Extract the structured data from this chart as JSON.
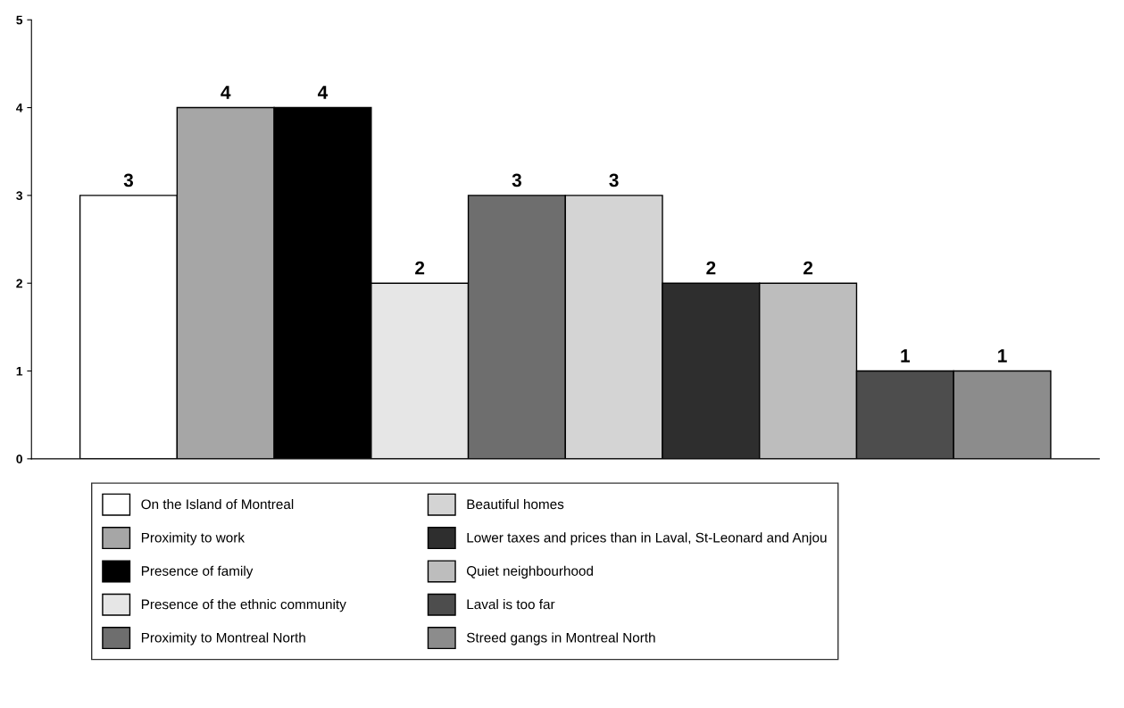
{
  "chart_data": {
    "type": "bar",
    "categories": [
      null,
      null,
      null,
      null,
      null,
      null,
      null,
      null,
      null,
      null
    ],
    "series": [
      {
        "name": "On the Island of Montreal",
        "color": "#ffffff",
        "values": [
          3,
          null,
          null,
          null,
          null,
          null,
          null,
          null,
          null,
          null
        ]
      },
      {
        "name": "Proximity to work",
        "color": "#a6a6a6",
        "values": [
          null,
          4,
          null,
          null,
          null,
          null,
          null,
          null,
          null,
          null
        ]
      },
      {
        "name": "Presence of family",
        "color": "#000000",
        "values": [
          null,
          null,
          4,
          null,
          null,
          null,
          null,
          null,
          null,
          null
        ]
      },
      {
        "name": "Presence of the ethnic community",
        "color": "#e6e6e6",
        "values": [
          null,
          null,
          null,
          2,
          null,
          null,
          null,
          null,
          null,
          null
        ]
      },
      {
        "name": "Proximity to Montreal North",
        "color": "#6e6e6e",
        "values": [
          null,
          null,
          null,
          null,
          3,
          null,
          null,
          null,
          null,
          null
        ]
      },
      {
        "name": "Beautiful homes",
        "color": "#d4d4d4",
        "values": [
          null,
          null,
          null,
          null,
          null,
          3,
          null,
          null,
          null,
          null
        ]
      },
      {
        "name": "Lower taxes and prices than in Laval, St-Leonard and Anjou",
        "color": "#2e2e2e",
        "values": [
          null,
          null,
          null,
          null,
          null,
          null,
          2,
          null,
          null,
          null
        ]
      },
      {
        "name": "Quiet neighbourhood",
        "color": "#bdbdbd",
        "values": [
          null,
          null,
          null,
          null,
          null,
          null,
          null,
          2,
          null,
          null
        ]
      },
      {
        "name": "Laval is too far",
        "color": "#4d4d4d",
        "values": [
          null,
          null,
          null,
          null,
          null,
          null,
          null,
          null,
          1,
          null
        ]
      },
      {
        "name": "Streed gangs in Montreal North",
        "color": "#8c8c8c",
        "values": [
          null,
          null,
          null,
          null,
          null,
          null,
          null,
          null,
          null,
          1
        ]
      }
    ],
    "ylim": [
      0,
      5
    ],
    "yticks": [
      0,
      1,
      2,
      3,
      4,
      5
    ],
    "data_labels": true,
    "legend": "bottom",
    "grid": false,
    "tick_labels": "y"
  }
}
